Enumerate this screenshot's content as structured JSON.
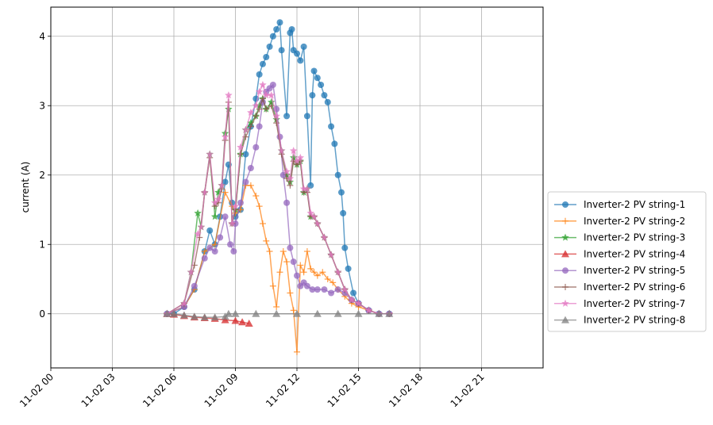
{
  "chart_data": {
    "type": "line",
    "ylabel": "current (A)",
    "xlabel": "",
    "ylim": [
      -0.78,
      4.42
    ],
    "xlim": [
      "11-02 00:00",
      "11-03 00:00"
    ],
    "x_tick_labels": [
      "11-02 00",
      "11-02 03",
      "11-02 06",
      "11-02 09",
      "11-02 12",
      "11-02 15",
      "11-02 18",
      "11-02 21"
    ],
    "y_tick_labels": [
      "0",
      "1",
      "2",
      "3",
      "4"
    ],
    "grid": true,
    "legend_position": "right, outside plot area",
    "series": [
      {
        "name": "Inverter-2 PV string-1",
        "color": "#1f77b4",
        "marker": "circle",
        "points": [
          [
            "05:40",
            0
          ],
          [
            "06:00",
            0
          ],
          [
            "06:30",
            0.1
          ],
          [
            "07:00",
            0.35
          ],
          [
            "07:30",
            0.9
          ],
          [
            "07:45",
            1.2
          ],
          [
            "08:00",
            1.0
          ],
          [
            "08:15",
            1.4
          ],
          [
            "08:30",
            1.9
          ],
          [
            "08:40",
            2.15
          ],
          [
            "08:50",
            1.6
          ],
          [
            "09:00",
            1.4
          ],
          [
            "09:15",
            1.5
          ],
          [
            "09:30",
            2.3
          ],
          [
            "09:45",
            2.7
          ],
          [
            "10:00",
            3.1
          ],
          [
            "10:10",
            3.45
          ],
          [
            "10:20",
            3.6
          ],
          [
            "10:30",
            3.7
          ],
          [
            "10:40",
            3.85
          ],
          [
            "10:50",
            4.0
          ],
          [
            "11:00",
            4.1
          ],
          [
            "11:10",
            4.2
          ],
          [
            "11:15",
            3.8
          ],
          [
            "11:30",
            2.85
          ],
          [
            "11:40",
            4.05
          ],
          [
            "11:45",
            4.1
          ],
          [
            "11:50",
            3.8
          ],
          [
            "12:00",
            3.75
          ],
          [
            "12:10",
            3.65
          ],
          [
            "12:20",
            3.85
          ],
          [
            "12:30",
            2.85
          ],
          [
            "12:40",
            1.85
          ],
          [
            "12:45",
            3.15
          ],
          [
            "12:50",
            3.5
          ],
          [
            "13:00",
            3.4
          ],
          [
            "13:10",
            3.3
          ],
          [
            "13:20",
            3.15
          ],
          [
            "13:30",
            3.05
          ],
          [
            "13:40",
            2.7
          ],
          [
            "13:50",
            2.45
          ],
          [
            "14:00",
            2.0
          ],
          [
            "14:10",
            1.75
          ],
          [
            "14:15",
            1.45
          ],
          [
            "14:20",
            0.95
          ],
          [
            "14:30",
            0.65
          ],
          [
            "14:45",
            0.3
          ],
          [
            "15:00",
            0.15
          ],
          [
            "15:30",
            0.05
          ],
          [
            "16:00",
            0
          ],
          [
            "16:30",
            0
          ]
        ]
      },
      {
        "name": "Inverter-2 PV string-2",
        "color": "#ff7f0e",
        "marker": "plus",
        "points": [
          [
            "05:40",
            0
          ],
          [
            "06:30",
            0.1
          ],
          [
            "07:00",
            0.35
          ],
          [
            "07:30",
            0.9
          ],
          [
            "08:00",
            1.0
          ],
          [
            "08:30",
            1.75
          ],
          [
            "08:50",
            1.55
          ],
          [
            "09:00",
            1.45
          ],
          [
            "09:15",
            1.5
          ],
          [
            "09:30",
            1.85
          ],
          [
            "09:45",
            1.85
          ],
          [
            "10:00",
            1.7
          ],
          [
            "10:10",
            1.55
          ],
          [
            "10:20",
            1.3
          ],
          [
            "10:30",
            1.05
          ],
          [
            "10:40",
            0.9
          ],
          [
            "10:50",
            0.4
          ],
          [
            "11:00",
            0.1
          ],
          [
            "11:10",
            0.6
          ],
          [
            "11:20",
            0.9
          ],
          [
            "11:30",
            0.75
          ],
          [
            "11:40",
            0.3
          ],
          [
            "11:50",
            0.05
          ],
          [
            "12:00",
            -0.55
          ],
          [
            "12:10",
            0.7
          ],
          [
            "12:20",
            0.6
          ],
          [
            "12:30",
            0.9
          ],
          [
            "12:40",
            0.65
          ],
          [
            "12:50",
            0.6
          ],
          [
            "13:00",
            0.55
          ],
          [
            "13:15",
            0.6
          ],
          [
            "13:30",
            0.5
          ],
          [
            "13:45",
            0.45
          ],
          [
            "14:00",
            0.35
          ],
          [
            "14:20",
            0.25
          ],
          [
            "14:40",
            0.15
          ],
          [
            "15:00",
            0.1
          ],
          [
            "15:30",
            0.05
          ],
          [
            "16:00",
            0
          ],
          [
            "16:30",
            0
          ]
        ]
      },
      {
        "name": "Inverter-2 PV string-3",
        "color": "#2ca02c",
        "marker": "star",
        "points": [
          [
            "05:40",
            0
          ],
          [
            "06:30",
            0.15
          ],
          [
            "06:50",
            0.6
          ],
          [
            "07:10",
            1.45
          ],
          [
            "07:20",
            1.25
          ],
          [
            "07:30",
            1.75
          ],
          [
            "07:45",
            2.3
          ],
          [
            "08:00",
            1.4
          ],
          [
            "08:10",
            1.75
          ],
          [
            "08:20",
            1.85
          ],
          [
            "08:30",
            2.6
          ],
          [
            "08:40",
            2.95
          ],
          [
            "08:50",
            1.3
          ],
          [
            "09:00",
            1.5
          ],
          [
            "09:15",
            2.3
          ],
          [
            "09:30",
            2.65
          ],
          [
            "09:45",
            2.75
          ],
          [
            "10:00",
            2.85
          ],
          [
            "10:10",
            3.0
          ],
          [
            "10:20",
            3.1
          ],
          [
            "10:30",
            2.95
          ],
          [
            "10:45",
            3.05
          ],
          [
            "11:00",
            2.8
          ],
          [
            "11:15",
            2.35
          ],
          [
            "11:30",
            2.0
          ],
          [
            "11:40",
            1.9
          ],
          [
            "11:50",
            2.25
          ],
          [
            "12:00",
            2.15
          ],
          [
            "12:10",
            2.2
          ],
          [
            "12:20",
            1.75
          ],
          [
            "12:30",
            1.8
          ],
          [
            "12:40",
            1.4
          ],
          [
            "12:50",
            1.4
          ],
          [
            "13:00",
            1.3
          ],
          [
            "13:20",
            1.1
          ],
          [
            "13:40",
            0.85
          ],
          [
            "14:00",
            0.6
          ],
          [
            "14:20",
            0.35
          ],
          [
            "14:40",
            0.2
          ],
          [
            "15:00",
            0.15
          ],
          [
            "15:30",
            0.05
          ],
          [
            "16:00",
            0
          ],
          [
            "16:30",
            0
          ]
        ]
      },
      {
        "name": "Inverter-2 PV string-4",
        "color": "#d62728",
        "marker": "triangle",
        "points": [
          [
            "05:40",
            0
          ],
          [
            "06:00",
            -0.01
          ],
          [
            "06:30",
            -0.03
          ],
          [
            "07:00",
            -0.05
          ],
          [
            "07:30",
            -0.06
          ],
          [
            "08:00",
            -0.07
          ],
          [
            "08:30",
            -0.09
          ],
          [
            "09:00",
            -0.1
          ],
          [
            "09:20",
            -0.12
          ],
          [
            "09:40",
            -0.14
          ]
        ]
      },
      {
        "name": "Inverter-2 PV string-5",
        "color": "#9467bd",
        "marker": "circle",
        "points": [
          [
            "05:40",
            0
          ],
          [
            "06:30",
            0.1
          ],
          [
            "07:00",
            0.4
          ],
          [
            "07:30",
            0.8
          ],
          [
            "07:45",
            0.95
          ],
          [
            "08:00",
            0.9
          ],
          [
            "08:15",
            1.1
          ],
          [
            "08:30",
            1.4
          ],
          [
            "08:45",
            1.0
          ],
          [
            "08:55",
            0.9
          ],
          [
            "09:00",
            1.3
          ],
          [
            "09:15",
            1.6
          ],
          [
            "09:30",
            1.9
          ],
          [
            "09:45",
            2.1
          ],
          [
            "10:00",
            2.4
          ],
          [
            "10:10",
            2.7
          ],
          [
            "10:20",
            3.05
          ],
          [
            "10:30",
            3.2
          ],
          [
            "10:40",
            3.25
          ],
          [
            "10:50",
            3.3
          ],
          [
            "11:00",
            2.95
          ],
          [
            "11:10",
            2.55
          ],
          [
            "11:20",
            2.0
          ],
          [
            "11:30",
            1.6
          ],
          [
            "11:40",
            0.95
          ],
          [
            "11:50",
            0.75
          ],
          [
            "12:00",
            0.55
          ],
          [
            "12:10",
            0.4
          ],
          [
            "12:20",
            0.45
          ],
          [
            "12:30",
            0.4
          ],
          [
            "12:45",
            0.35
          ],
          [
            "13:00",
            0.35
          ],
          [
            "13:20",
            0.35
          ],
          [
            "13:40",
            0.3
          ],
          [
            "14:00",
            0.35
          ],
          [
            "14:20",
            0.3
          ],
          [
            "14:40",
            0.2
          ],
          [
            "15:00",
            0.15
          ],
          [
            "15:30",
            0.05
          ],
          [
            "16:00",
            0
          ],
          [
            "16:30",
            0
          ]
        ]
      },
      {
        "name": "Inverter-2 PV string-6",
        "color": "#8c564b",
        "marker": "plus",
        "points": [
          [
            "05:40",
            0
          ],
          [
            "06:30",
            0.15
          ],
          [
            "07:00",
            0.7
          ],
          [
            "07:15",
            1.1
          ],
          [
            "07:30",
            1.75
          ],
          [
            "07:45",
            2.25
          ],
          [
            "08:00",
            1.55
          ],
          [
            "08:10",
            1.6
          ],
          [
            "08:20",
            1.8
          ],
          [
            "08:30",
            2.5
          ],
          [
            "08:40",
            3.05
          ],
          [
            "08:50",
            1.3
          ],
          [
            "09:00",
            1.5
          ],
          [
            "09:15",
            2.3
          ],
          [
            "09:30",
            2.55
          ],
          [
            "09:45",
            2.7
          ],
          [
            "10:00",
            2.85
          ],
          [
            "10:10",
            2.95
          ],
          [
            "10:20",
            3.1
          ],
          [
            "10:30",
            2.95
          ],
          [
            "10:45",
            3.0
          ],
          [
            "11:00",
            2.75
          ],
          [
            "11:15",
            2.3
          ],
          [
            "11:30",
            1.95
          ],
          [
            "11:40",
            1.85
          ],
          [
            "11:50",
            2.2
          ],
          [
            "12:00",
            2.15
          ],
          [
            "12:10",
            2.2
          ],
          [
            "12:20",
            1.75
          ],
          [
            "12:30",
            1.75
          ],
          [
            "12:40",
            1.4
          ],
          [
            "12:50",
            1.4
          ],
          [
            "13:00",
            1.3
          ],
          [
            "13:20",
            1.1
          ],
          [
            "13:40",
            0.85
          ],
          [
            "14:00",
            0.6
          ],
          [
            "14:20",
            0.35
          ],
          [
            "14:40",
            0.2
          ],
          [
            "15:00",
            0.15
          ],
          [
            "15:30",
            0.05
          ],
          [
            "16:00",
            0
          ],
          [
            "16:30",
            0
          ]
        ]
      },
      {
        "name": "Inverter-2 PV string-7",
        "color": "#e377c2",
        "marker": "star",
        "points": [
          [
            "05:40",
            0
          ],
          [
            "06:30",
            0.15
          ],
          [
            "06:50",
            0.6
          ],
          [
            "07:10",
            1.15
          ],
          [
            "07:20",
            1.25
          ],
          [
            "07:30",
            1.75
          ],
          [
            "07:45",
            2.3
          ],
          [
            "08:00",
            1.6
          ],
          [
            "08:10",
            1.65
          ],
          [
            "08:20",
            1.85
          ],
          [
            "08:30",
            2.55
          ],
          [
            "08:40",
            3.15
          ],
          [
            "08:50",
            1.3
          ],
          [
            "09:00",
            1.55
          ],
          [
            "09:15",
            2.4
          ],
          [
            "09:30",
            2.65
          ],
          [
            "09:45",
            2.9
          ],
          [
            "10:00",
            3.0
          ],
          [
            "10:10",
            3.2
          ],
          [
            "10:20",
            3.3
          ],
          [
            "10:30",
            3.15
          ],
          [
            "10:45",
            3.15
          ],
          [
            "11:00",
            2.85
          ],
          [
            "11:15",
            2.35
          ],
          [
            "11:30",
            2.05
          ],
          [
            "11:40",
            1.95
          ],
          [
            "11:50",
            2.35
          ],
          [
            "12:00",
            2.2
          ],
          [
            "12:10",
            2.25
          ],
          [
            "12:20",
            1.8
          ],
          [
            "12:30",
            1.8
          ],
          [
            "12:40",
            1.45
          ],
          [
            "12:50",
            1.4
          ],
          [
            "13:00",
            1.3
          ],
          [
            "13:20",
            1.1
          ],
          [
            "13:40",
            0.85
          ],
          [
            "14:00",
            0.6
          ],
          [
            "14:20",
            0.35
          ],
          [
            "14:40",
            0.2
          ],
          [
            "15:00",
            0.15
          ],
          [
            "15:30",
            0.05
          ],
          [
            "16:00",
            0
          ],
          [
            "16:30",
            0
          ]
        ]
      },
      {
        "name": "Inverter-2 PV string-8",
        "color": "#7f7f7f",
        "marker": "triangle",
        "points": [
          [
            "05:40",
            0
          ],
          [
            "06:00",
            0
          ],
          [
            "06:30",
            -0.02
          ],
          [
            "07:00",
            -0.04
          ],
          [
            "07:30",
            -0.05
          ],
          [
            "08:00",
            -0.05
          ],
          [
            "08:30",
            -0.04
          ],
          [
            "08:40",
            0
          ],
          [
            "09:00",
            0
          ],
          [
            "10:00",
            0
          ],
          [
            "11:00",
            0
          ],
          [
            "12:00",
            0
          ],
          [
            "13:00",
            0
          ],
          [
            "14:00",
            0
          ],
          [
            "15:00",
            0
          ],
          [
            "16:00",
            0
          ],
          [
            "16:30",
            0
          ]
        ]
      }
    ]
  }
}
